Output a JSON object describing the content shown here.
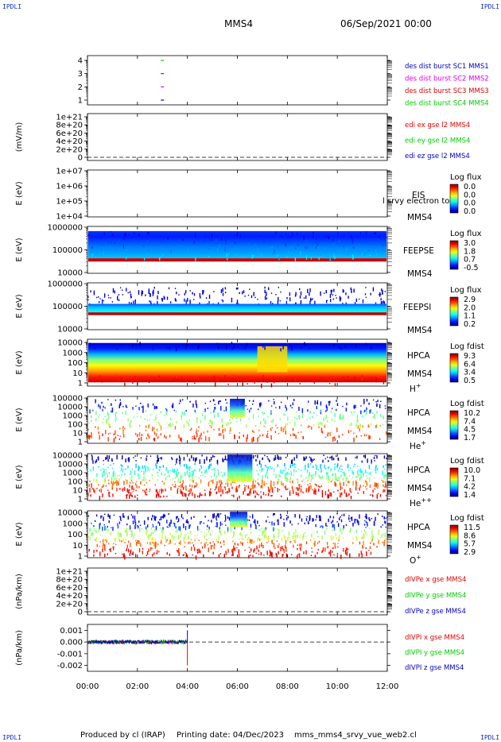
{
  "corner_label": "IPDLI",
  "header": {
    "spacecraft": "MMS4",
    "date": "06/Sep/2021 00:00"
  },
  "footer": {
    "producer": "Produced by cl (IRAP)",
    "printing": "Printing date: 04/Dec/2023",
    "script": "mms_mms4_srvy_vue_web2.cl"
  },
  "colors": {
    "blue": "#0000c0",
    "magenta": "#e000e0",
    "red": "#e00000",
    "green": "#00cc00",
    "dark_red": "#cc0000"
  },
  "x_axis": {
    "ticks": [
      "00:00",
      "02:00",
      "04:00",
      "06:00",
      "08:00",
      "10:00",
      "12:00"
    ],
    "range_hours": [
      0,
      12
    ]
  },
  "panels": {
    "dist": {
      "yticks": [
        "4",
        "3",
        "2",
        "1"
      ],
      "legend": [
        "des dist burst SC1 MMS1",
        "des dist burst SC2 MMS2",
        "des dist burst SC3 MMS3",
        "des dist burst SC4 MMS4"
      ]
    },
    "edi": {
      "ylabel": "(mV/m)",
      "yticks": [
        "1e+21",
        "8e+20",
        "6e+20",
        "4e+20",
        "2e+20",
        "0"
      ],
      "legend": [
        "edi ex gse l2 MMS4",
        "edi ey gse l2 MMS4",
        "edi ez gse l2 MMS4"
      ]
    },
    "eis": {
      "ylabel": "E (eV)",
      "yticks": [
        "1e+07",
        "1e+06",
        "1e+05",
        "1e+04"
      ],
      "label1": "EIS",
      "overlay": "l srvy electron to",
      "label2": "MMS4",
      "cbar_title": "Log flux",
      "cbar_ticks": [
        "0.0",
        "0.0",
        "0.0",
        "0.0"
      ]
    },
    "feepse": {
      "ylabel": "E (eV)",
      "yticks": [
        "1000000",
        "100000",
        "10000"
      ],
      "label1": "FEEPSE",
      "label2": "MMS4",
      "cbar_title": "Log flux",
      "cbar_ticks": [
        "3.0",
        "1.8",
        "0.7",
        "-0.5"
      ]
    },
    "feepsi": {
      "ylabel": "E (eV)",
      "yticks": [
        "1000000",
        "100000",
        "10000"
      ],
      "label1": "FEEPSI",
      "label2": "MMS4",
      "cbar_title": "Log flux",
      "cbar_ticks": [
        "2.9",
        "2.0",
        "1.1",
        "0.2"
      ]
    },
    "hpca_h": {
      "ylabel": "E (eV)",
      "yticks": [
        "10000",
        "1000",
        "100",
        "10",
        "1"
      ],
      "label1": "HPCA",
      "label2": "MMS4",
      "species": "H",
      "charge": "+",
      "cbar_title": "Log fdist",
      "cbar_ticks": [
        "9.3",
        "6.4",
        "3.4",
        "0.5"
      ]
    },
    "hpca_he": {
      "ylabel": "E (eV)",
      "yticks": [
        "100000",
        "10000",
        "1000",
        "100",
        "10",
        "1"
      ],
      "label1": "HPCA",
      "label2": "MMS4",
      "species": "He",
      "charge": "+",
      "cbar_title": "Log fdist",
      "cbar_ticks": [
        "10.2",
        "7.4",
        "4.5",
        "1.7"
      ]
    },
    "hpca_hepp": {
      "ylabel": "E (eV)",
      "yticks": [
        "100000",
        "10000",
        "1000",
        "100",
        "10",
        "1"
      ],
      "label1": "HPCA",
      "label2": "MMS4",
      "species": "He",
      "charge": "++",
      "cbar_title": "Log fdist",
      "cbar_ticks": [
        "10.0",
        "7.1",
        "4.2",
        "1.4"
      ]
    },
    "hpca_o": {
      "ylabel": "E (eV)",
      "yticks": [
        "10000",
        "1000",
        "100",
        "10",
        "1"
      ],
      "label1": "HPCA",
      "label2": "MMS4",
      "species": "O",
      "charge": "+",
      "cbar_title": "Log fdist",
      "cbar_ticks": [
        "11.5",
        "8.6",
        "5.7",
        "2.9"
      ]
    },
    "divpe": {
      "ylabel": "(nPa/km)",
      "yticks": [
        "1e+21",
        "8e+20",
        "6e+20",
        "4e+20",
        "2e+20",
        "0"
      ],
      "legend": [
        "dIVPe x gse MMS4",
        "dIVPe y gse MMS4",
        "dIVPe z gse MMS4"
      ]
    },
    "divpi": {
      "ylabel": "(nPa/km)",
      "yticks": [
        "0.001",
        "0.000",
        "-0.001",
        "-0.002"
      ],
      "legend": [
        "dIVPI x gse MMS4",
        "dIVPI y gse MMS4",
        "dIVPI z gse MMS4"
      ]
    }
  },
  "chart_data": {
    "type": "line",
    "title": "MMS4 06/Sep/2021 00:00",
    "x_range_hours": [
      0,
      12
    ],
    "series": [
      {
        "name": "dIVPI x gse MMS4",
        "x": [
          0,
          1,
          2,
          3,
          4
        ],
        "values": [
          0.0,
          0.0,
          0.0,
          0.0,
          -0.002
        ]
      },
      {
        "name": "dIVPI y gse MMS4",
        "x": [
          0,
          1,
          2,
          3,
          4
        ],
        "values": [
          0.0,
          0.0,
          0.0,
          0.0,
          0.0
        ]
      },
      {
        "name": "dIVPI z gse MMS4",
        "x": [
          0,
          1,
          2,
          3,
          4
        ],
        "values": [
          0.0,
          0.0,
          0.0,
          0.0,
          0.001
        ]
      }
    ]
  }
}
